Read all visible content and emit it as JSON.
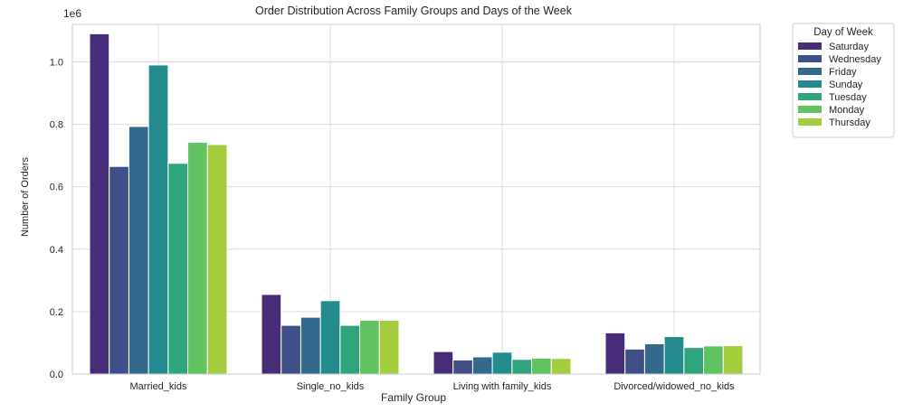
{
  "chart_data": {
    "type": "bar",
    "title": "Order Distribution Across Family Groups and Days of the Week",
    "xlabel": "Family Group",
    "ylabel": "Number of Orders",
    "scale_label": "1e6",
    "ylim": [
      0,
      1.12
    ],
    "yticks": [
      "0.0",
      "0.2",
      "0.4",
      "0.6",
      "0.8",
      "1.0"
    ],
    "grid": true,
    "legend_position": "outside-top-right",
    "legend_title": "Day of Week",
    "categories": [
      "Married_kids",
      "Single_no_kids",
      "Living with family_kids",
      "Divorced/widowed_no_kids"
    ],
    "series": [
      {
        "name": "Saturday",
        "color": "#472c7a",
        "values": [
          1.09,
          0.255,
          0.072,
          0.132
        ]
      },
      {
        "name": "Wednesday",
        "color": "#3f4f8a",
        "values": [
          0.665,
          0.156,
          0.045,
          0.08
        ]
      },
      {
        "name": "Friday",
        "color": "#32698c",
        "values": [
          0.793,
          0.182,
          0.055,
          0.097
        ]
      },
      {
        "name": "Sunday",
        "color": "#238a8d",
        "values": [
          0.99,
          0.235,
          0.07,
          0.12
        ]
      },
      {
        "name": "Tuesday",
        "color": "#2ea57c",
        "values": [
          0.675,
          0.156,
          0.047,
          0.085
        ]
      },
      {
        "name": "Monday",
        "color": "#60c260",
        "values": [
          0.742,
          0.172,
          0.051,
          0.09
        ]
      },
      {
        "name": "Thursday",
        "color": "#a3cd3c",
        "values": [
          0.735,
          0.172,
          0.05,
          0.091
        ]
      }
    ]
  }
}
